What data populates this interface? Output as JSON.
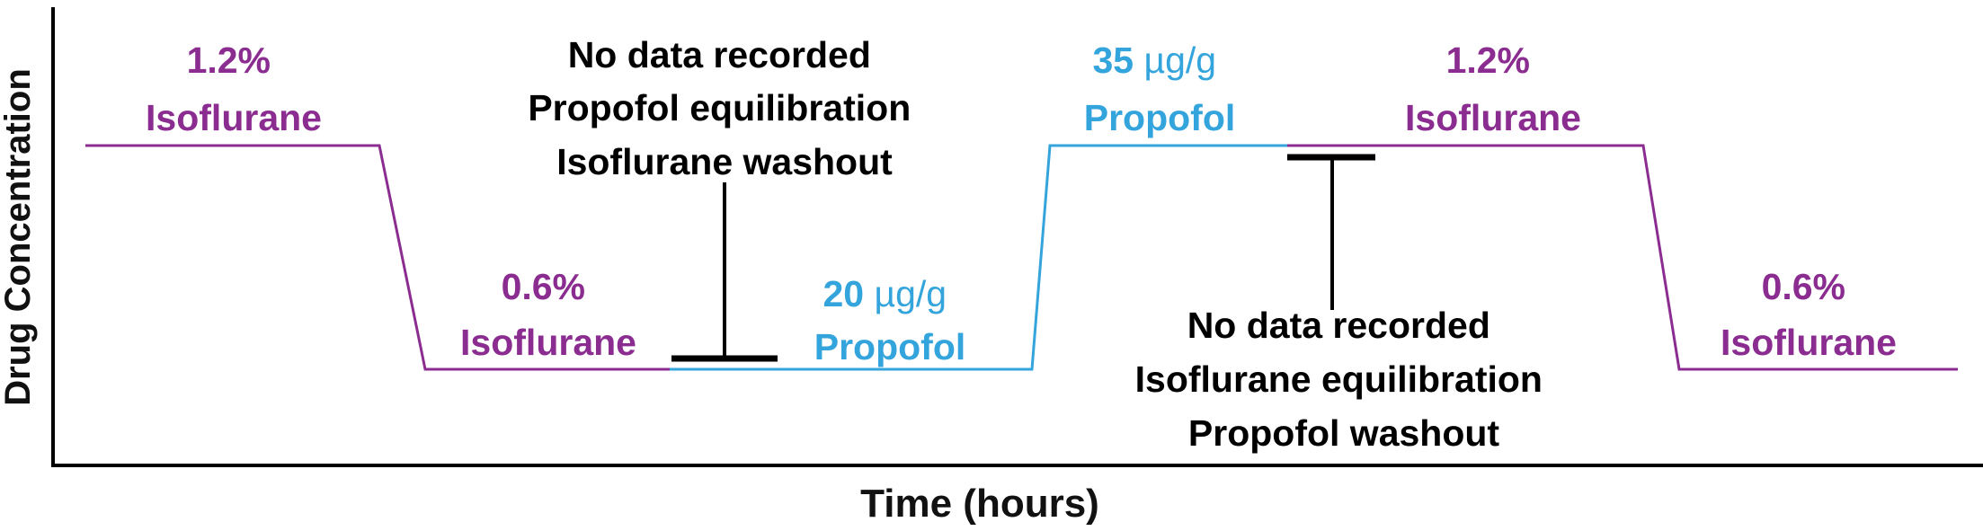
{
  "axes": {
    "y_label": "Drug Concentration",
    "x_label": "Time (hours)"
  },
  "colors": {
    "isoflurane": "#8B2D90",
    "propofol": "#34A4DC",
    "annotation": "#000000"
  },
  "phases": [
    {
      "drug": "isoflurane",
      "level": "high",
      "dose_value": "1.2%",
      "dose_unit": "",
      "drug_name": "Isoflurane"
    },
    {
      "drug": "isoflurane",
      "level": "low",
      "dose_value": "0.6%",
      "dose_unit": "",
      "drug_name": "Isoflurane"
    },
    {
      "drug": "propofol",
      "level": "low",
      "dose_value": "20",
      "dose_unit": "µg/g",
      "drug_name": "Propofol"
    },
    {
      "drug": "propofol",
      "level": "high",
      "dose_value": "35",
      "dose_unit": "µg/g",
      "drug_name": "Propofol"
    },
    {
      "drug": "isoflurane",
      "level": "high",
      "dose_value": "1.2%",
      "dose_unit": "",
      "drug_name": "Isoflurane"
    },
    {
      "drug": "isoflurane",
      "level": "low",
      "dose_value": "0.6%",
      "dose_unit": "",
      "drug_name": "Isoflurane"
    }
  ],
  "gaps": [
    {
      "lines": [
        "No data recorded",
        "Propofol equilibration",
        "Isoflurane washout"
      ]
    },
    {
      "lines": [
        "No data recorded",
        "Isoflurane equilibration",
        "Propofol washout"
      ]
    }
  ]
}
